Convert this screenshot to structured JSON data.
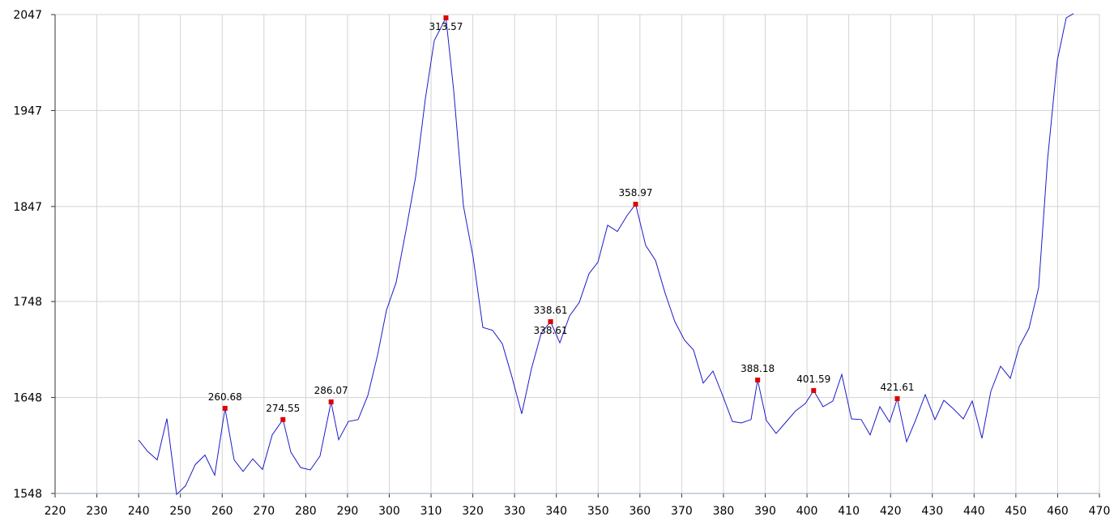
{
  "chart_data": {
    "type": "line",
    "x": [
      240.0,
      242.11,
      244.44,
      246.76,
      249.09,
      251.23,
      253.55,
      255.88,
      258.21,
      260.68,
      262.86,
      265.0,
      267.32,
      269.65,
      271.98,
      274.55,
      276.44,
      278.77,
      281.09,
      283.42,
      286.07,
      287.88,
      290.21,
      292.54,
      294.86,
      297.19,
      299.33,
      301.65,
      303.98,
      306.31,
      308.63,
      310.77,
      313.57,
      315.42,
      317.75,
      320.08,
      322.4,
      324.73,
      327.06,
      329.39,
      331.71,
      334.04,
      336.37,
      338.61,
      340.83,
      343.16,
      345.48,
      347.81,
      349.95,
      352.27,
      354.6,
      356.93,
      358.97,
      361.39,
      363.72,
      366.04,
      368.37,
      370.7,
      372.83,
      375.16,
      377.49,
      379.81,
      382.14,
      384.27,
      386.6,
      388.18,
      390.29,
      392.61,
      394.94,
      397.27,
      399.6,
      401.59,
      403.86,
      406.19,
      408.32,
      410.65,
      412.98,
      415.11,
      417.44,
      419.77,
      421.61,
      423.84,
      425.97,
      428.3,
      430.63,
      432.76,
      435.09,
      437.42,
      439.55,
      441.88,
      444.01,
      446.34,
      448.67,
      450.8,
      453.13,
      455.45,
      457.59,
      459.91,
      462.05,
      463.8
    ],
    "series": [
      {
        "color": "#1c1cc8",
        "values": [
          1603.7,
          1592,
          1583,
          1626,
          1547,
          1556,
          1578,
          1588,
          1567,
          1636.7,
          1583,
          1571,
          1584,
          1573,
          1609,
          1625,
          1591,
          1575,
          1572.5,
          1587,
          1643.4,
          1604,
          1623,
          1625,
          1650,
          1692,
          1739,
          1768,
          1821.6,
          1878,
          1959,
          2020,
          2043.6,
          1968,
          1847.7,
          1794,
          1721,
          1718,
          1704,
          1669,
          1631,
          1678,
          1715,
          1727,
          1705,
          1733,
          1747,
          1777,
          1789,
          1827.5,
          1821,
          1837.6,
          1849.4,
          1806.4,
          1791,
          1756.6,
          1727,
          1707.6,
          1697.5,
          1663,
          1675.5,
          1650,
          1623,
          1621.5,
          1625,
          1666.2,
          1624,
          1610.5,
          1622.3,
          1634,
          1641.7,
          1655.2,
          1638.4,
          1644.3,
          1672,
          1625.7,
          1625,
          1609,
          1638.4,
          1622.3,
          1646.8,
          1602,
          1624,
          1651,
          1625,
          1645,
          1636,
          1625.7,
          1644.3,
          1605.4,
          1654.4,
          1680.6,
          1668,
          1701,
          1720,
          1762.5,
          1896,
          1999,
          2043.6,
          2048
        ]
      }
    ],
    "peaks": {
      "color": "#e00000",
      "x": [
        260.68,
        274.55,
        286.07,
        313.57,
        338.61,
        338.61,
        358.97,
        388.18,
        401.59,
        421.61
      ],
      "values": [
        1636.7,
        1625,
        1643.4,
        2043.6,
        1727,
        1727,
        1849.4,
        1666.2,
        1655.2,
        1646.8
      ]
    },
    "xlim": [
      220,
      470
    ],
    "ylim": [
      1548,
      2047
    ],
    "xticks": [
      220,
      230,
      240,
      250,
      260,
      270,
      280,
      290,
      300,
      310,
      320,
      330,
      340,
      350,
      360,
      370,
      380,
      390,
      400,
      410,
      420,
      430,
      440,
      450,
      460,
      470
    ],
    "yticks": [
      1548,
      1648,
      1748,
      1847,
      1947,
      2047
    ],
    "grid": true
  }
}
